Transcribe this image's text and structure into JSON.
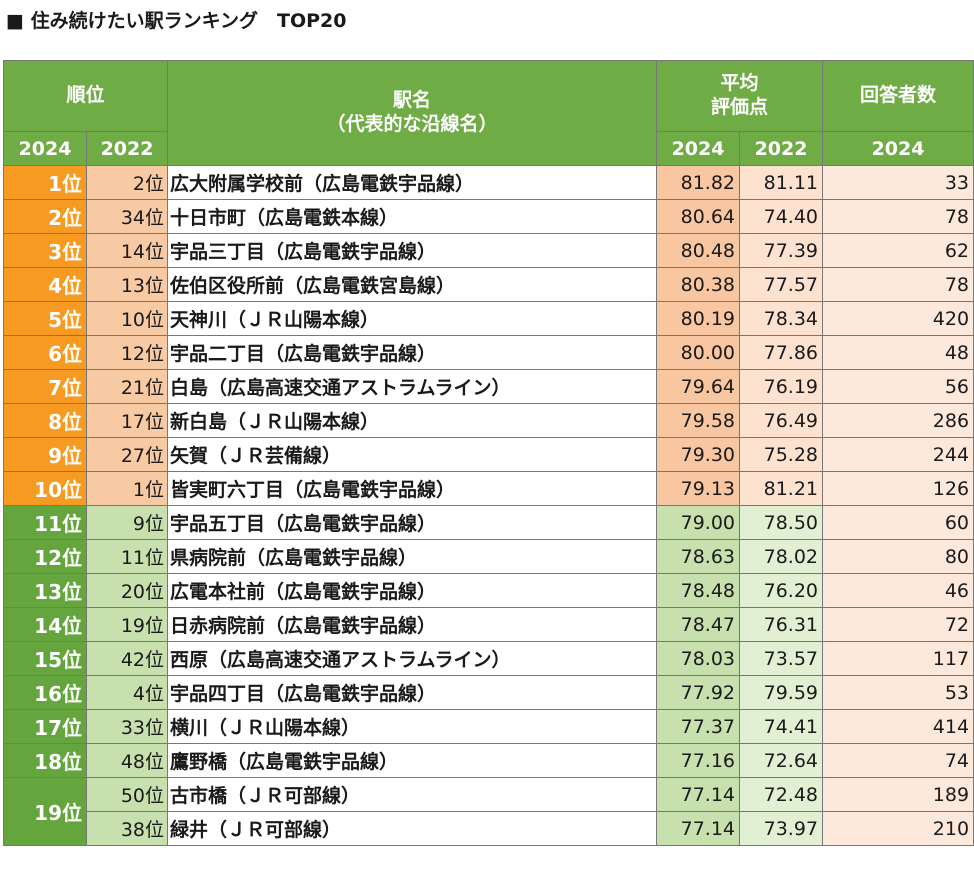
{
  "title": "■ 住み続けたい駅ランキング　TOP20",
  "headers": {
    "rank": "順位",
    "station_line1": "駅名",
    "station_line2": "（代表的な沿線名）",
    "score_line1": "平均",
    "score_line2": "評価点",
    "respondents": "回答者数",
    "y2024": "2024",
    "y2022": "2022",
    "score_y2024": "2024",
    "score_y2022": "2022",
    "resp_y2024": "2024"
  },
  "colors": {
    "header_green": "#6fac46",
    "rank_orange": "#f79a21",
    "rank_green": "#64a53d"
  },
  "rows": [
    {
      "rank2024": "1位",
      "rank2022": "2位",
      "station": "広大附属学校前（広島電鉄宇品線）",
      "score2024": "81.82",
      "score2022": "81.11",
      "respondents": "33"
    },
    {
      "rank2024": "2位",
      "rank2022": "34位",
      "station": "十日市町（広島電鉄本線）",
      "score2024": "80.64",
      "score2022": "74.40",
      "respondents": "78"
    },
    {
      "rank2024": "3位",
      "rank2022": "14位",
      "station": "宇品三丁目（広島電鉄宇品線）",
      "score2024": "80.48",
      "score2022": "77.39",
      "respondents": "62"
    },
    {
      "rank2024": "4位",
      "rank2022": "13位",
      "station": "佐伯区役所前（広島電鉄宮島線）",
      "score2024": "80.38",
      "score2022": "77.57",
      "respondents": "78"
    },
    {
      "rank2024": "5位",
      "rank2022": "10位",
      "station": "天神川（ＪＲ山陽本線）",
      "score2024": "80.19",
      "score2022": "78.34",
      "respondents": "420"
    },
    {
      "rank2024": "6位",
      "rank2022": "12位",
      "station": "宇品二丁目（広島電鉄宇品線）",
      "score2024": "80.00",
      "score2022": "77.86",
      "respondents": "48"
    },
    {
      "rank2024": "7位",
      "rank2022": "21位",
      "station": "白島（広島高速交通アストラムライン）",
      "score2024": "79.64",
      "score2022": "76.19",
      "respondents": "56"
    },
    {
      "rank2024": "8位",
      "rank2022": "17位",
      "station": "新白島（ＪＲ山陽本線）",
      "score2024": "79.58",
      "score2022": "76.49",
      "respondents": "286"
    },
    {
      "rank2024": "9位",
      "rank2022": "27位",
      "station": "矢賀（ＪＲ芸備線）",
      "score2024": "79.30",
      "score2022": "75.28",
      "respondents": "244"
    },
    {
      "rank2024": "10位",
      "rank2022": "1位",
      "station": "皆実町六丁目（広島電鉄宇品線）",
      "score2024": "79.13",
      "score2022": "81.21",
      "respondents": "126"
    },
    {
      "rank2024": "11位",
      "rank2022": "9位",
      "station": "宇品五丁目（広島電鉄宇品線）",
      "score2024": "79.00",
      "score2022": "78.50",
      "respondents": "60"
    },
    {
      "rank2024": "12位",
      "rank2022": "11位",
      "station": "県病院前（広島電鉄宇品線）",
      "score2024": "78.63",
      "score2022": "78.02",
      "respondents": "80"
    },
    {
      "rank2024": "13位",
      "rank2022": "20位",
      "station": "広電本社前（広島電鉄宇品線）",
      "score2024": "78.48",
      "score2022": "76.20",
      "respondents": "46"
    },
    {
      "rank2024": "14位",
      "rank2022": "19位",
      "station": "日赤病院前（広島電鉄宇品線）",
      "score2024": "78.47",
      "score2022": "76.31",
      "respondents": "72"
    },
    {
      "rank2024": "15位",
      "rank2022": "42位",
      "station": "西原（広島高速交通アストラムライン）",
      "score2024": "78.03",
      "score2022": "73.57",
      "respondents": "117"
    },
    {
      "rank2024": "16位",
      "rank2022": "4位",
      "station": "宇品四丁目（広島電鉄宇品線）",
      "score2024": "77.92",
      "score2022": "79.59",
      "respondents": "53"
    },
    {
      "rank2024": "17位",
      "rank2022": "33位",
      "station": "横川（ＪＲ山陽本線）",
      "score2024": "77.37",
      "score2022": "74.41",
      "respondents": "414"
    },
    {
      "rank2024": "18位",
      "rank2022": "48位",
      "station": "鷹野橋（広島電鉄宇品線）",
      "score2024": "77.16",
      "score2022": "72.64",
      "respondents": "74"
    },
    {
      "rank2024": "19位",
      "rank2022": "50位",
      "station": "古市橋（ＪＲ可部線）",
      "score2024": "77.14",
      "score2022": "72.48",
      "respondents": "189"
    },
    {
      "rank2024": "",
      "rank2022": "38位",
      "station": "緑井（ＪＲ可部線）",
      "score2024": "77.14",
      "score2022": "73.97",
      "respondents": "210"
    }
  ]
}
